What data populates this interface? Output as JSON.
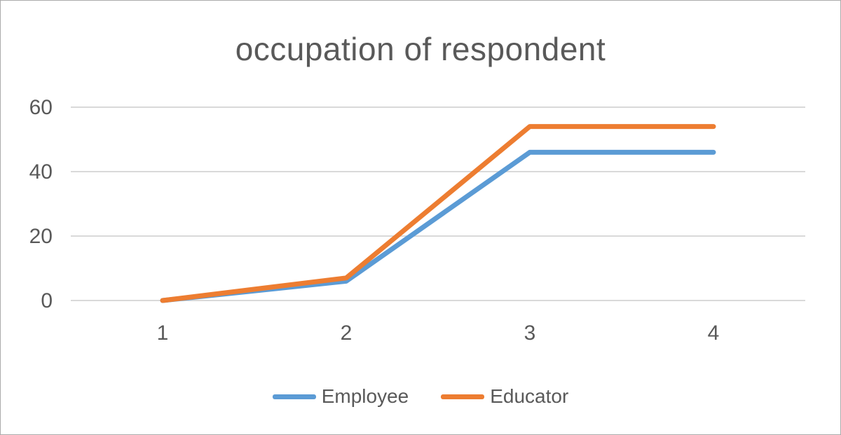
{
  "frame": {
    "background": "#ffffff",
    "border_color": "#ababab"
  },
  "chart_data": {
    "type": "line",
    "title": "occupation of respondent",
    "categories": [
      "1",
      "2",
      "3",
      "4"
    ],
    "series": [
      {
        "name": "Employee",
        "color": "#5B9BD5",
        "values": [
          0,
          6,
          46,
          46
        ]
      },
      {
        "name": "Educator",
        "color": "#ED7D31",
        "values": [
          0,
          7,
          54,
          54
        ]
      }
    ],
    "xlabel": "",
    "ylabel": "",
    "yticks": [
      0,
      20,
      40,
      60
    ],
    "ylim": [
      0,
      60
    ],
    "grid": true,
    "legend_position": "bottom",
    "text_color": "#595959",
    "gridline_color": "#d9d9d9",
    "line_width": 7
  }
}
